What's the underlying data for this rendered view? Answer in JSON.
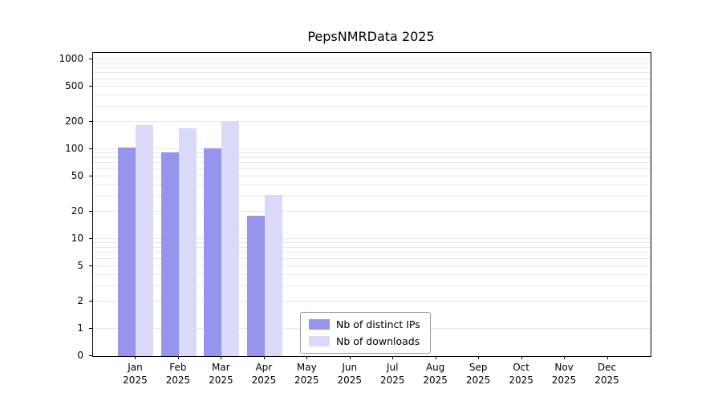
{
  "title": "PepsNMRData 2025",
  "chart_data": {
    "type": "bar",
    "title": "PepsNMRData 2025",
    "scale": "symlog",
    "grid": true,
    "legend_position": "bottom-center",
    "grid_color": "#e7e7e7",
    "axis_color": "#000000",
    "categories": [
      {
        "month": "Jan",
        "year": "2025"
      },
      {
        "month": "Feb",
        "year": "2025"
      },
      {
        "month": "Mar",
        "year": "2025"
      },
      {
        "month": "Apr",
        "year": "2025"
      },
      {
        "month": "May",
        "year": "2025"
      },
      {
        "month": "Jun",
        "year": "2025"
      },
      {
        "month": "Jul",
        "year": "2025"
      },
      {
        "month": "Aug",
        "year": "2025"
      },
      {
        "month": "Sep",
        "year": "2025"
      },
      {
        "month": "Oct",
        "year": "2025"
      },
      {
        "month": "Nov",
        "year": "2025"
      },
      {
        "month": "Dec",
        "year": "2025"
      }
    ],
    "series": [
      {
        "name": "Nb of distinct IPs",
        "color": "#9595ec",
        "values": [
          105,
          92,
          103,
          18,
          0,
          0,
          0,
          0,
          0,
          0,
          0,
          0
        ]
      },
      {
        "name": "Nb of downloads",
        "color": "#d9d9f8",
        "values": [
          185,
          172,
          205,
          31,
          0,
          0,
          0,
          0,
          0,
          0,
          0,
          0
        ]
      }
    ],
    "y_ticks": [
      0,
      1,
      2,
      5,
      10,
      20,
      50,
      100,
      200,
      500,
      1000
    ],
    "ylim": [
      0,
      1000
    ]
  }
}
